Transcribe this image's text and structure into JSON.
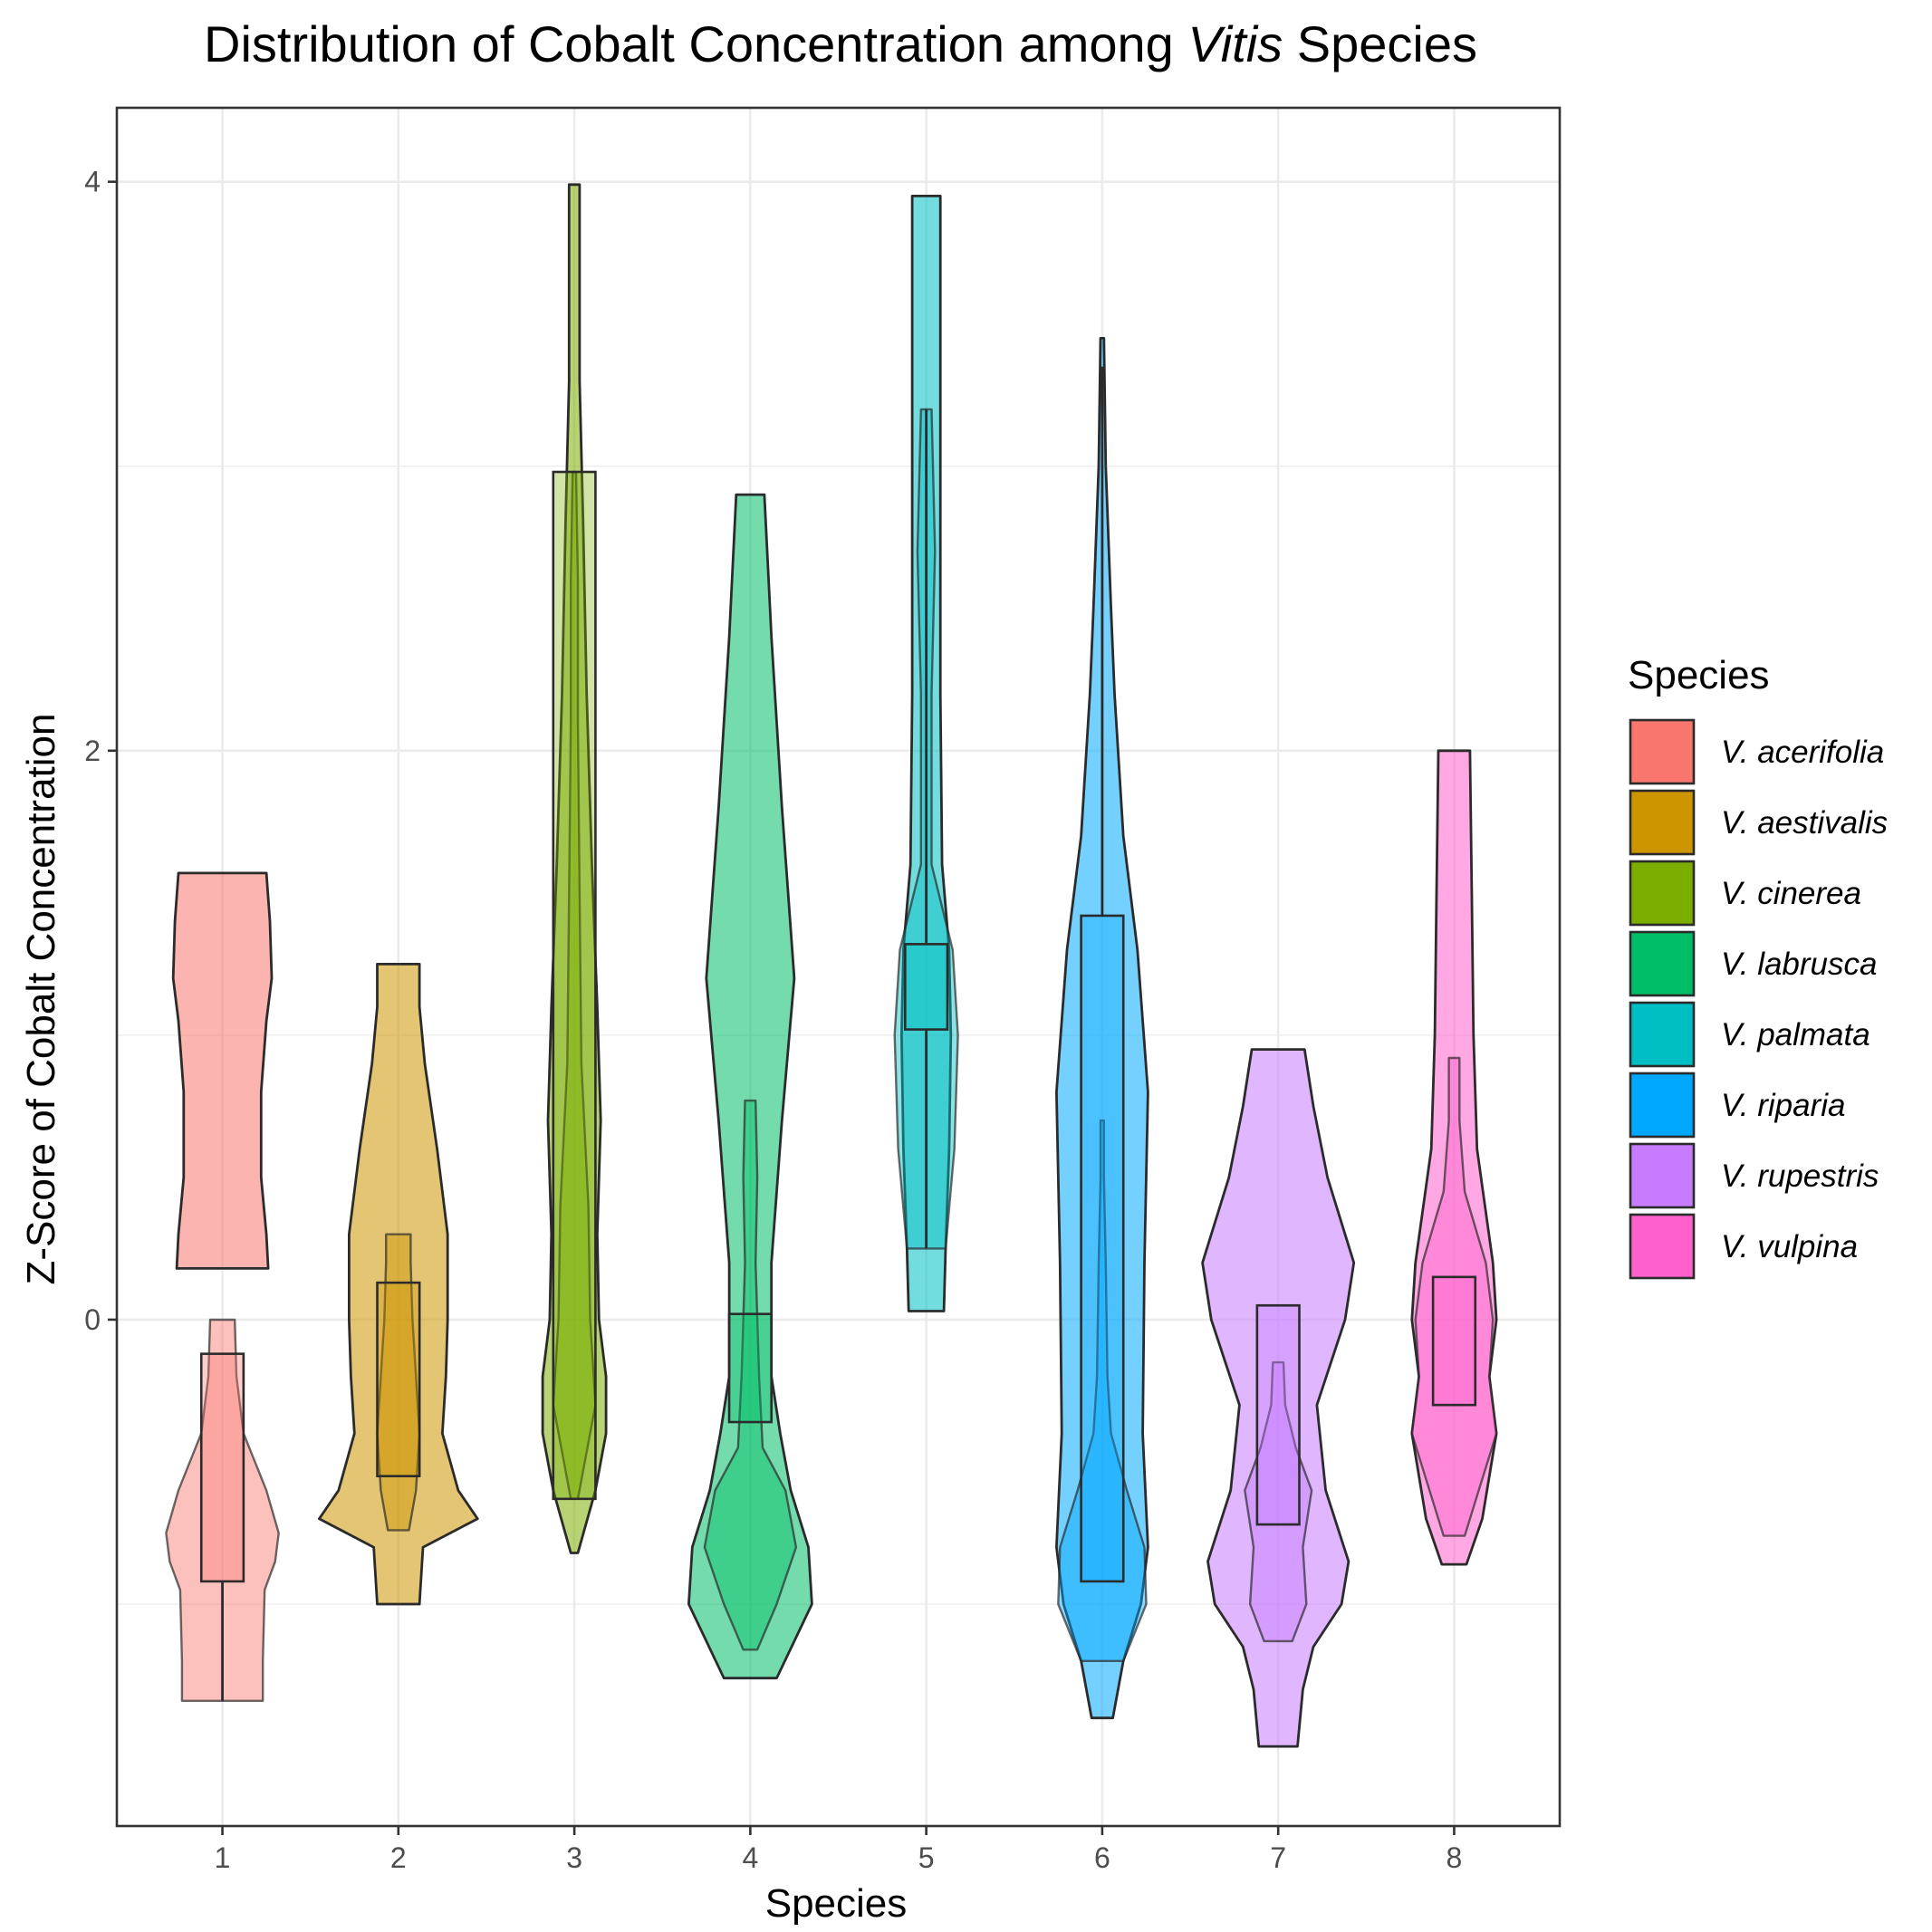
{
  "chart_data": {
    "type": "violin",
    "title_parts": [
      "Distribution of Cobalt Concentration among ",
      "Vitis",
      " Species"
    ],
    "xlabel": "Species",
    "ylabel": "Z-Score of Cobalt Concentration",
    "x_ticks": [
      "1",
      "2",
      "3",
      "4",
      "5",
      "6",
      "7",
      "8"
    ],
    "y_ticks": [
      0,
      2,
      4
    ],
    "ylim": [
      -1.78,
      4.26
    ],
    "xlim": [
      0.4,
      8.6
    ],
    "grid": true,
    "legend": {
      "title": "Species",
      "position": "right",
      "entries": [
        "V. acerifolia",
        "V. aestivalis",
        "V. cinerea",
        "V. labrusca",
        "V. palmata",
        "V. riparia",
        "V. rupestris",
        "V. vulpina"
      ]
    },
    "series": [
      {
        "name": "V. acerifolia",
        "x": 1,
        "color": "#F8766D",
        "violin_profile": [
          [
            0.18,
            0.26
          ],
          [
            0.3,
            0.25
          ],
          [
            0.5,
            0.22
          ],
          [
            0.8,
            0.22
          ],
          [
            1.05,
            0.25
          ],
          [
            1.2,
            0.28
          ],
          [
            1.4,
            0.27
          ],
          [
            1.57,
            0.25
          ]
        ],
        "inner_violin_profile": [
          [
            -1.34,
            0.23
          ],
          [
            -1.2,
            0.23
          ],
          [
            -0.95,
            0.24
          ],
          [
            -0.85,
            0.3
          ],
          [
            -0.75,
            0.32
          ],
          [
            -0.6,
            0.25
          ],
          [
            -0.4,
            0.12
          ],
          [
            -0.2,
            0.08
          ],
          [
            0.0,
            0.07
          ]
        ],
        "box": {
          "low": -1.34,
          "q1": -0.92,
          "q3": -0.12,
          "high": -0.12
        }
      },
      {
        "name": "V. aestivalis",
        "x": 2,
        "color": "#CD9600",
        "violin_profile": [
          [
            -1.0,
            0.12
          ],
          [
            -0.8,
            0.14
          ],
          [
            -0.7,
            0.45
          ],
          [
            -0.6,
            0.34
          ],
          [
            -0.4,
            0.25
          ],
          [
            -0.2,
            0.27
          ],
          [
            0.0,
            0.28
          ],
          [
            0.3,
            0.28
          ],
          [
            0.6,
            0.22
          ],
          [
            0.9,
            0.15
          ],
          [
            1.1,
            0.12
          ],
          [
            1.25,
            0.12
          ]
        ],
        "inner_violin_profile": [
          [
            -0.74,
            0.06
          ],
          [
            -0.6,
            0.1
          ],
          [
            -0.4,
            0.12
          ],
          [
            -0.2,
            0.1
          ],
          [
            0.0,
            0.08
          ],
          [
            0.2,
            0.07
          ],
          [
            0.3,
            0.07
          ]
        ],
        "box": {
          "low": -0.55,
          "q1": -0.55,
          "q3": 0.13,
          "high": 0.13
        }
      },
      {
        "name": "V. cinerea",
        "x": 3,
        "color": "#7CAE00",
        "violin_profile": [
          [
            -0.82,
            0.02
          ],
          [
            -0.6,
            0.12
          ],
          [
            -0.4,
            0.18
          ],
          [
            -0.2,
            0.18
          ],
          [
            0.0,
            0.14
          ],
          [
            0.3,
            0.13
          ],
          [
            0.7,
            0.15
          ],
          [
            1.1,
            0.13
          ],
          [
            1.6,
            0.1
          ],
          [
            2.2,
            0.07
          ],
          [
            2.8,
            0.05
          ],
          [
            3.3,
            0.03
          ],
          [
            3.7,
            0.03
          ],
          [
            3.99,
            0.03
          ]
        ],
        "inner_violin_profile": [
          [
            -0.63,
            0.02
          ],
          [
            -0.3,
            0.12
          ],
          [
            0.0,
            0.09
          ],
          [
            0.4,
            0.08
          ],
          [
            0.9,
            0.04
          ],
          [
            1.5,
            0.03
          ],
          [
            2.1,
            0.02
          ],
          [
            2.6,
            0.02
          ],
          [
            2.98,
            0.01
          ]
        ],
        "box": {
          "low": -0.63,
          "q1": -0.63,
          "q3": 2.98,
          "high": 2.98
        }
      },
      {
        "name": "V. labrusca",
        "x": 4,
        "color": "#00BE67",
        "violin_profile": [
          [
            -1.26,
            0.15
          ],
          [
            -1.0,
            0.35
          ],
          [
            -0.8,
            0.33
          ],
          [
            -0.6,
            0.23
          ],
          [
            -0.4,
            0.17
          ],
          [
            -0.2,
            0.12
          ],
          [
            0.2,
            0.12
          ],
          [
            0.7,
            0.18
          ],
          [
            1.2,
            0.25
          ],
          [
            1.8,
            0.18
          ],
          [
            2.4,
            0.12
          ],
          [
            2.9,
            0.08
          ]
        ],
        "inner_violin_profile": [
          [
            -1.16,
            0.04
          ],
          [
            -1.0,
            0.15
          ],
          [
            -0.8,
            0.26
          ],
          [
            -0.6,
            0.2
          ],
          [
            -0.45,
            0.07
          ],
          [
            -0.2,
            0.05
          ],
          [
            0.2,
            0.03
          ],
          [
            0.5,
            0.04
          ],
          [
            0.77,
            0.03
          ]
        ],
        "box": {
          "low": -0.36,
          "q1": -0.36,
          "q3": 0.02,
          "high": 0.02
        }
      },
      {
        "name": "V. palmata",
        "x": 5,
        "color": "#00BFC4",
        "violin_profile": [
          [
            0.03,
            0.1
          ],
          [
            0.25,
            0.11
          ],
          [
            0.6,
            0.13
          ],
          [
            1.0,
            0.14
          ],
          [
            1.3,
            0.13
          ],
          [
            1.6,
            0.09
          ],
          [
            2.2,
            0.08
          ],
          [
            2.9,
            0.08
          ],
          [
            3.5,
            0.08
          ],
          [
            3.95,
            0.08
          ]
        ],
        "inner_violin_profile": [
          [
            0.25,
            0.11
          ],
          [
            0.6,
            0.16
          ],
          [
            1.0,
            0.18
          ],
          [
            1.3,
            0.15
          ],
          [
            1.6,
            0.03
          ],
          [
            2.2,
            0.03
          ],
          [
            2.7,
            0.05
          ],
          [
            3.2,
            0.03
          ]
        ],
        "box": {
          "low": 0.25,
          "q1": 1.02,
          "q3": 1.32,
          "high": 3.2
        }
      },
      {
        "name": "V. riparia",
        "x": 6,
        "color": "#00A9FF",
        "violin_profile": [
          [
            -1.4,
            0.06
          ],
          [
            -1.2,
            0.12
          ],
          [
            -1.0,
            0.22
          ],
          [
            -0.8,
            0.26
          ],
          [
            -0.4,
            0.23
          ],
          [
            0.2,
            0.24
          ],
          [
            0.8,
            0.26
          ],
          [
            1.3,
            0.2
          ],
          [
            1.7,
            0.12
          ],
          [
            2.2,
            0.07
          ],
          [
            2.5,
            0.05
          ],
          [
            3.0,
            0.02
          ],
          [
            3.45,
            0.01
          ]
        ],
        "inner_violin_profile": [
          [
            -1.2,
            0.12
          ],
          [
            -1.0,
            0.25
          ],
          [
            -0.8,
            0.24
          ],
          [
            -0.6,
            0.14
          ],
          [
            -0.4,
            0.05
          ],
          [
            -0.2,
            0.03
          ],
          [
            0.2,
            0.02
          ],
          [
            0.5,
            0.01
          ],
          [
            0.7,
            0.01
          ]
        ],
        "box": {
          "low": -0.92,
          "q1": -0.92,
          "q3": 1.42,
          "high": 3.35
        }
      },
      {
        "name": "V. rupestris",
        "x": 7,
        "color": "#C77CFF",
        "violin_profile": [
          [
            -1.5,
            0.11
          ],
          [
            -1.3,
            0.14
          ],
          [
            -1.15,
            0.2
          ],
          [
            -1.0,
            0.36
          ],
          [
            -0.85,
            0.4
          ],
          [
            -0.6,
            0.27
          ],
          [
            -0.3,
            0.22
          ],
          [
            0.0,
            0.38
          ],
          [
            0.2,
            0.43
          ],
          [
            0.5,
            0.28
          ],
          [
            0.75,
            0.2
          ],
          [
            0.95,
            0.15
          ]
        ],
        "inner_violin_profile": [
          [
            -1.13,
            0.08
          ],
          [
            -1.0,
            0.16
          ],
          [
            -0.8,
            0.14
          ],
          [
            -0.6,
            0.19
          ],
          [
            -0.45,
            0.1
          ],
          [
            -0.3,
            0.04
          ],
          [
            -0.15,
            0.03
          ]
        ],
        "box": {
          "low": -0.72,
          "q1": -0.72,
          "q3": 0.05,
          "high": 0.05
        }
      },
      {
        "name": "V. vulpina",
        "x": 8,
        "color": "#FF61CC",
        "violin_profile": [
          [
            -0.86,
            0.07
          ],
          [
            -0.7,
            0.16
          ],
          [
            -0.4,
            0.24
          ],
          [
            -0.2,
            0.2
          ],
          [
            0.0,
            0.24
          ],
          [
            0.2,
            0.22
          ],
          [
            0.6,
            0.13
          ],
          [
            1.0,
            0.11
          ],
          [
            1.5,
            0.1
          ],
          [
            2.0,
            0.09
          ]
        ],
        "inner_violin_profile": [
          [
            -0.76,
            0.06
          ],
          [
            -0.6,
            0.14
          ],
          [
            -0.4,
            0.24
          ],
          [
            -0.2,
            0.2
          ],
          [
            0.0,
            0.22
          ],
          [
            0.2,
            0.18
          ],
          [
            0.45,
            0.06
          ],
          [
            0.7,
            0.03
          ],
          [
            0.92,
            0.03
          ]
        ],
        "box": {
          "low": -0.3,
          "q1": -0.3,
          "q3": 0.15,
          "high": 0.15
        }
      }
    ]
  }
}
